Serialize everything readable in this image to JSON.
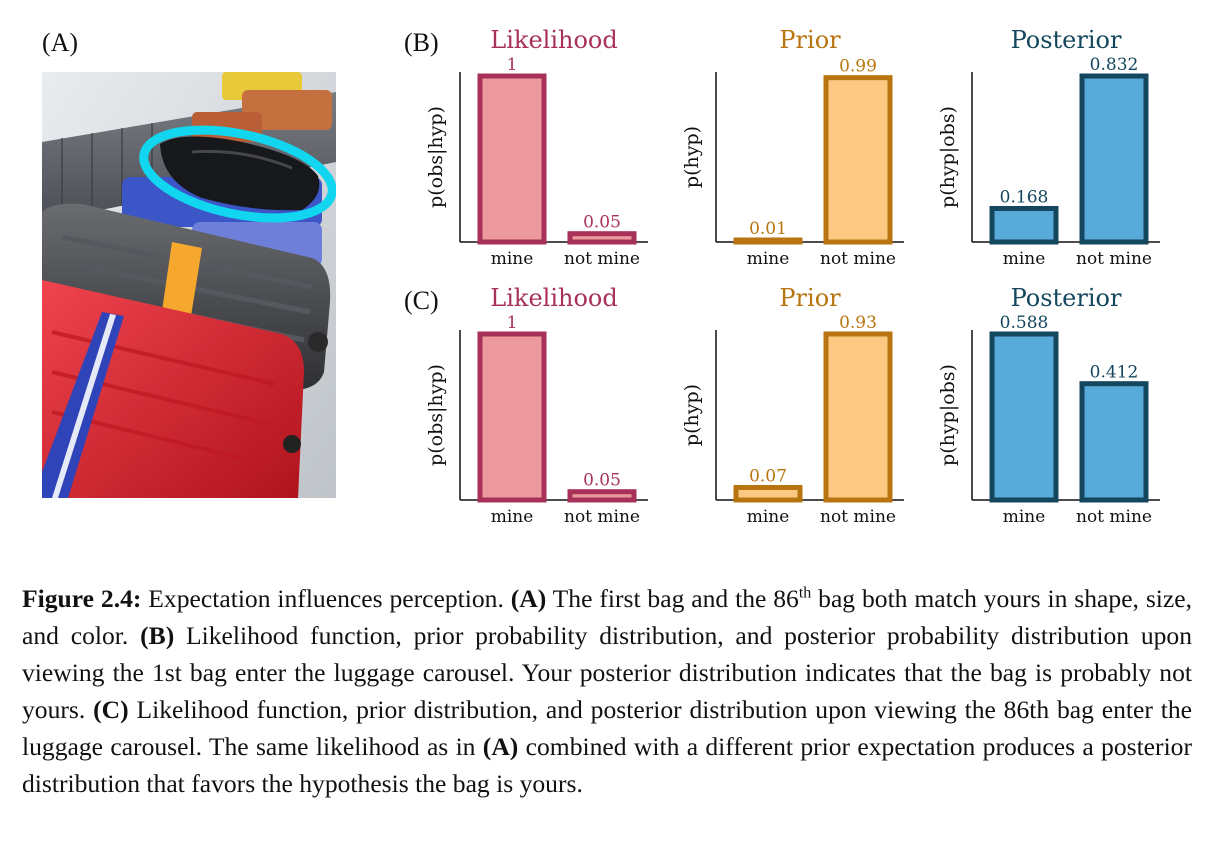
{
  "panels": {
    "a": "(A)",
    "b": "(B)",
    "c": "(C)"
  },
  "colors": {
    "likelihood_fill": "#eb999c",
    "likelihood_edge": "#a8315a",
    "prior_fill": "#fbc981",
    "prior_edge": "#b8750f",
    "posterior_fill": "#58aad9",
    "posterior_edge": "#14475e"
  },
  "photo": {
    "description_icon": "luggage-carousel-photo-with-highlighted-bag"
  },
  "chart_data": [
    {
      "type": "bar",
      "row": "B",
      "title": "Likelihood",
      "ylabel": "p(obs|hyp)",
      "categories": [
        "mine",
        "not mine"
      ],
      "values": [
        1,
        0.05
      ],
      "labels": [
        "1",
        "0.05"
      ],
      "ylim": [
        0,
        1
      ]
    },
    {
      "type": "bar",
      "row": "B",
      "title": "Prior",
      "ylabel": "p(hyp)",
      "categories": [
        "mine",
        "not mine"
      ],
      "values": [
        0.01,
        0.99
      ],
      "labels": [
        "0.01",
        "0.99"
      ],
      "ylim": [
        0,
        1
      ]
    },
    {
      "type": "bar",
      "row": "B",
      "title": "Posterior",
      "ylabel": "p(hyp|obs)",
      "categories": [
        "mine",
        "not mine"
      ],
      "values": [
        0.168,
        0.832
      ],
      "labels": [
        "0.168",
        "0.832"
      ],
      "ylim": [
        0,
        0.832
      ]
    },
    {
      "type": "bar",
      "row": "C",
      "title": "Likelihood",
      "ylabel": "p(obs|hyp)",
      "categories": [
        "mine",
        "not mine"
      ],
      "values": [
        1,
        0.05
      ],
      "labels": [
        "1",
        "0.05"
      ],
      "ylim": [
        0,
        1
      ]
    },
    {
      "type": "bar",
      "row": "C",
      "title": "Prior",
      "ylabel": "p(hyp)",
      "categories": [
        "mine",
        "not mine"
      ],
      "values": [
        0.07,
        0.93
      ],
      "labels": [
        "0.07",
        "0.93"
      ],
      "ylim": [
        0,
        0.93
      ]
    },
    {
      "type": "bar",
      "row": "C",
      "title": "Posterior",
      "ylabel": "p(hyp|obs)",
      "categories": [
        "mine",
        "not mine"
      ],
      "values": [
        0.588,
        0.412
      ],
      "labels": [
        "0.588",
        "0.412"
      ],
      "ylim": [
        0,
        0.588
      ]
    }
  ],
  "caption": {
    "figure": "Figure 2.4:",
    "lead": " Expectation influences perception. ",
    "a_ref": "(A)",
    "a_text1": " The first bag and the 86",
    "a_sup": "th",
    "a_text2": " bag both match yours in shape, size, and color. ",
    "b_ref": "(B)",
    "b_text": " Likelihood function, prior probability distribution, and posterior probability distribution upon viewing the 1st bag enter the luggage carousel.  Your posterior distribution indicates that the bag is probably not yours. ",
    "c_ref": "(C)",
    "c_text": " Likelihood function, prior distribution, and posterior distribution upon viewing the 86th bag enter the luggage carousel. The same likelihood as in ",
    "a_ref2": "(A)",
    "end_text": " combined with a different prior expectation produces a posterior distribution that favors the hypothesis the bag is yours."
  }
}
